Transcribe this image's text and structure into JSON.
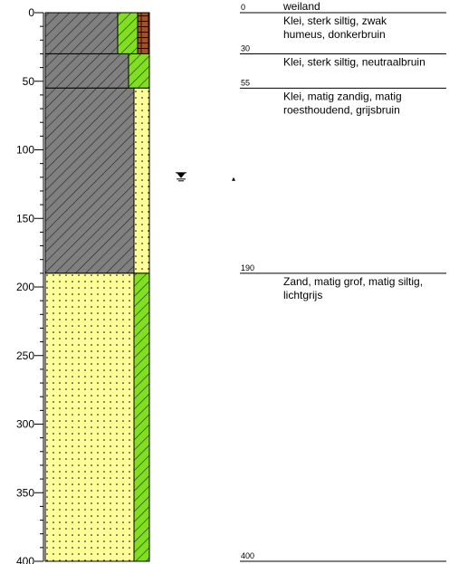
{
  "log": {
    "surface": "weiland",
    "ylim": [
      0,
      400
    ],
    "yticks": [
      0,
      50,
      100,
      150,
      200,
      250,
      300,
      350,
      400
    ],
    "minor_yticks": [
      10,
      20,
      30,
      40,
      60,
      70,
      80,
      90,
      110,
      120,
      130,
      140,
      160,
      170,
      180,
      190,
      210,
      220,
      230,
      240,
      260,
      270,
      280,
      290,
      310,
      320,
      330,
      340,
      360,
      370,
      380,
      390
    ],
    "boundaries": [
      0,
      30,
      55,
      190,
      400
    ],
    "groundwater": 120,
    "layers": [
      {
        "lines": [
          "Klei, sterk siltig, zwak",
          "humeus, donkerbruin"
        ],
        "fills": [
          "#808080",
          "#80e020",
          "#a0522d"
        ]
      },
      {
        "lines": [
          "Klei, sterk siltig, neutraalbruin"
        ],
        "fills": [
          "#808080",
          "#80e020"
        ]
      },
      {
        "lines": [
          "Klei, matig zandig, matig",
          "roesthoudend, grijsbruin"
        ],
        "fills": [
          "#808080",
          "#ffff99"
        ]
      },
      {
        "lines": [
          "Zand, matig grof, matig siltig,",
          "lichtgrijs"
        ],
        "fills": [
          "#ffff99",
          "#80e020"
        ]
      }
    ]
  }
}
